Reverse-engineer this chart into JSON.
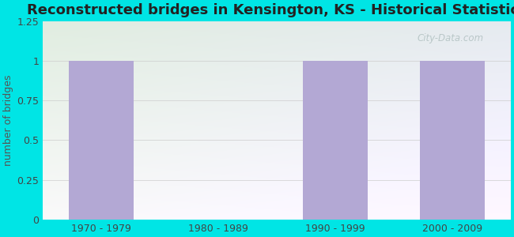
{
  "title": "Reconstructed bridges in Kensington, KS - Historical Statistics",
  "categories": [
    "1970 - 1979",
    "1980 - 1989",
    "1990 - 1999",
    "2000 - 2009"
  ],
  "values": [
    1,
    0,
    1,
    1
  ],
  "bar_color": "#b3a8d4",
  "ylabel": "number of bridges",
  "ylim": [
    0,
    1.25
  ],
  "yticks": [
    0,
    0.25,
    0.5,
    0.75,
    1,
    1.25
  ],
  "background_outer": "#00e5e5",
  "grad_color_topleft": "#e0ede0",
  "grad_color_bottomright": "#e8e8f0",
  "title_fontsize": 13,
  "ylabel_fontsize": 9,
  "tick_fontsize": 9,
  "watermark": "City-Data.com"
}
